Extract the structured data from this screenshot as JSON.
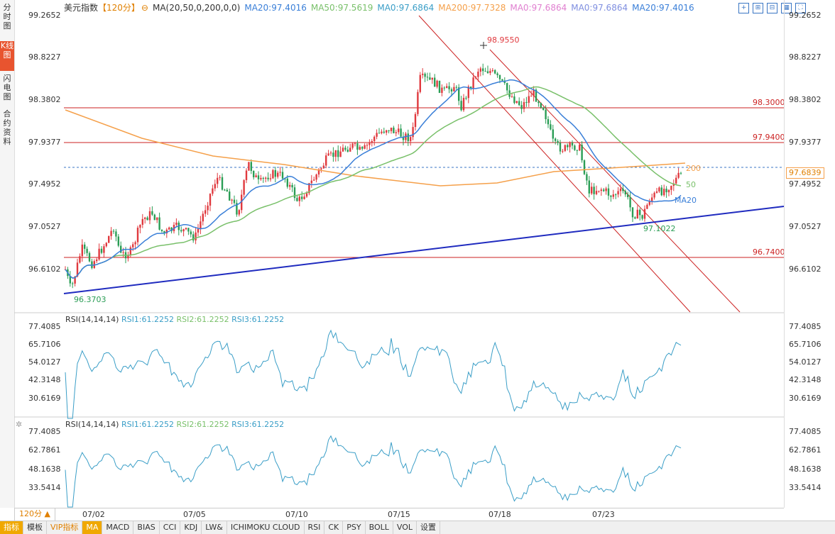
{
  "sidebar": {
    "tabs": [
      {
        "label": "分时图",
        "active": false
      },
      {
        "label": "K线图",
        "active": true
      },
      {
        "label": "闪电图",
        "active": false
      },
      {
        "label": "合约资料",
        "active": false
      }
    ]
  },
  "legend": {
    "instrument": "美元指数",
    "period": "【120分】",
    "ma_params": "MA(20,50,0,200,0,0)",
    "ma20": "MA20:97.4016",
    "ma50": "MA50:97.5619",
    "ma0a": "MA0:97.6864",
    "ma200": "MA200:97.7328",
    "ma0b": "MA0:97.6864",
    "ma0c": "MA0:97.6864",
    "ma20b": "MA20:97.4016"
  },
  "price_axis": {
    "labels": [
      "99.2652",
      "98.8227",
      "98.3802",
      "97.9377",
      "97.4952",
      "97.0527",
      "96.6102"
    ],
    "current_price": "97.6839"
  },
  "level_labels": {
    "r1": "98.3000",
    "r2": "97.9400",
    "s1": "96.7400"
  },
  "annotations": {
    "high": "98.9550",
    "low_start": "96.3703",
    "low_recent": "97.1022",
    "ma20_tag": "MA20",
    "ma50_tag": "50",
    "ma200_tag": "200"
  },
  "rsi1": {
    "title": "RSI(14,14,14)",
    "rsi1": "RSI1:61.2252",
    "rsi2": "RSI2:61.2252",
    "rsi3": "RSI3:61.2252",
    "labels": [
      "77.4085",
      "65.7106",
      "54.0127",
      "42.3148",
      "30.6169"
    ]
  },
  "rsi2_panel": {
    "title": "RSI(14,14,14)",
    "rsi1": "RSI1:61.2252",
    "rsi2": "RSI2:61.2252",
    "rsi3": "RSI3:61.2252",
    "labels": [
      "77.4085",
      "62.7861",
      "48.1638",
      "33.5414"
    ]
  },
  "dates": [
    "07/02",
    "07/05",
    "07/10",
    "07/15",
    "07/18",
    "07/23"
  ],
  "period_selector": "120分 ▲",
  "toolbar": [
    "指标",
    "模板",
    "VIP指标",
    "MA",
    "MACD",
    "BIAS",
    "CCI",
    "KDJ",
    "LW&",
    "ICHIMOKU CLOUD",
    "RSI",
    "CK",
    "PSY",
    "BOLL",
    "VOL",
    "设置"
  ],
  "colors": {
    "ma20": "#3a7fd8",
    "ma50": "#79c06a",
    "ma200": "#f5a04a",
    "up": "#e0393e",
    "down": "#2a9d55",
    "level": "#cc2222",
    "trend": "#1f2bbf",
    "rsi": "#3a9ec7"
  }
}
